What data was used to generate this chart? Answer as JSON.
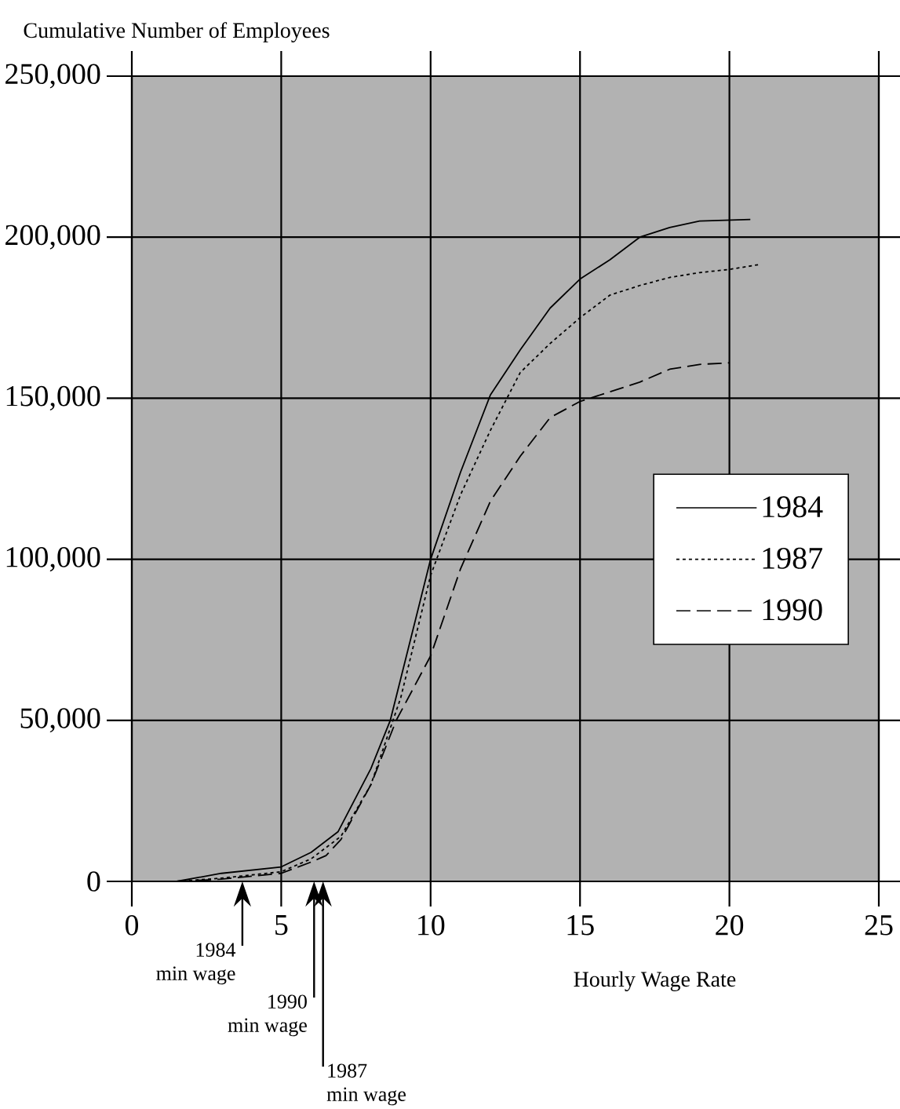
{
  "chart_data": {
    "type": "line",
    "xlabel": "Hourly Wage Rate",
    "ylabel": "Cumulative Number of Employees",
    "xlim": [
      0,
      25
    ],
    "xticks": [
      0,
      5,
      10,
      15,
      20,
      25
    ],
    "ylim": [
      0,
      250000
    ],
    "yticks": [
      {
        "value": 0,
        "label": "0"
      },
      {
        "value": 50000,
        "label": "50,000"
      },
      {
        "value": 100000,
        "label": "100,000"
      },
      {
        "value": 150000,
        "label": "150,000"
      },
      {
        "value": 200000,
        "label": "200,000"
      },
      {
        "value": 250000,
        "label": "250,000"
      }
    ],
    "grid": true,
    "legend": "right",
    "marker": "none",
    "series": [
      {
        "name": "1984",
        "color": "#000000",
        "line_style": "solid",
        "x": [
          1.5,
          3,
          4,
          5,
          6,
          6.9,
          8,
          8.65,
          10,
          11,
          12,
          13,
          14,
          15,
          16,
          17,
          18,
          19,
          20.7
        ],
        "values": [
          0,
          2500,
          3500,
          4500,
          9000,
          15400,
          35000,
          50000,
          100000,
          127000,
          151000,
          165000,
          178000,
          187000,
          193000,
          200000,
          203000,
          205000,
          205500
        ]
      },
      {
        "name": "1987",
        "color": "#000000",
        "line_style": "dotted",
        "x": [
          1.5,
          3,
          5,
          6,
          7,
          8,
          9,
          10,
          11,
          12,
          13,
          14,
          15,
          16,
          17,
          18,
          19,
          20,
          21
        ],
        "values": [
          0,
          1000,
          3000,
          7000,
          14000,
          30000,
          57000,
          95000,
          120000,
          140000,
          158000,
          167000,
          175000,
          182000,
          185000,
          187500,
          189000,
          190000,
          191500
        ]
      },
      {
        "name": "1990",
        "color": "#000000",
        "line_style": "dashed",
        "x": [
          1.5,
          3,
          5,
          6,
          6.5,
          7,
          8,
          8.85,
          10,
          11,
          12,
          13,
          14,
          15,
          16,
          17,
          18,
          19,
          20
        ],
        "values": [
          0,
          700,
          2500,
          6000,
          8000,
          13000,
          30000,
          50000,
          70000,
          97000,
          118000,
          132000,
          144000,
          149000,
          152000,
          155000,
          159000,
          160500,
          161000
        ]
      }
    ],
    "ref_lines": [
      {
        "axis": "x",
        "value": 3.7,
        "label": "1984 min wage"
      },
      {
        "axis": "x",
        "value": 6.1,
        "label": "1990 min wage"
      },
      {
        "axis": "x",
        "value": 6.4,
        "label": "1987 min wage"
      }
    ]
  }
}
